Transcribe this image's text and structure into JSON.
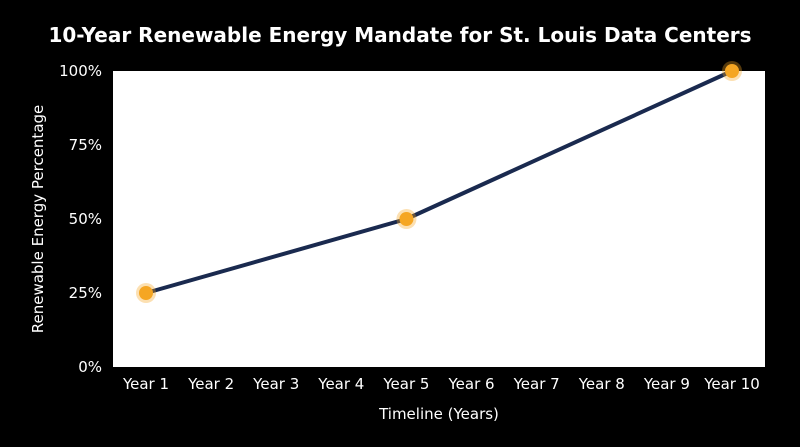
{
  "chart_data": {
    "type": "line",
    "title": "10-Year Renewable Energy Mandate for St. Louis Data Centers",
    "xlabel": "Timeline (Years)",
    "ylabel": "Renewable Energy Percentage",
    "categories": [
      "Year 1",
      "Year 2",
      "Year 3",
      "Year 4",
      "Year 5",
      "Year 6",
      "Year 7",
      "Year 8",
      "Year 9",
      "Year 10"
    ],
    "y_ticks": [
      "0%",
      "25%",
      "50%",
      "75%",
      "100%"
    ],
    "ylim": [
      0,
      100
    ],
    "grid": false,
    "series": [
      {
        "values": [
          25,
          null,
          null,
          null,
          50,
          null,
          null,
          null,
          null,
          100
        ],
        "line_color": "#1a2a4f",
        "marker_color": "#f5a623",
        "markers_at": [
          "Year 1",
          "Year 5",
          "Year 10"
        ]
      }
    ],
    "plot_background": "#ffffff",
    "page_background": "#000000"
  }
}
